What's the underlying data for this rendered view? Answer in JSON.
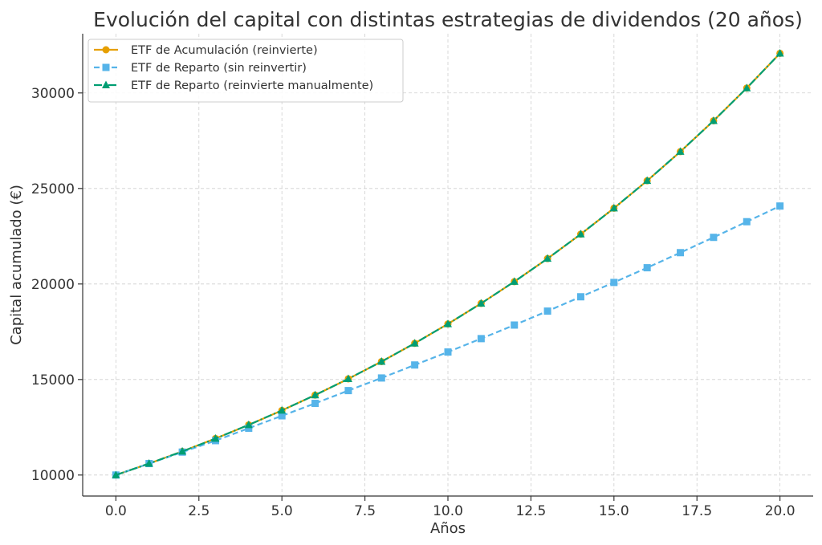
{
  "chart_data": {
    "type": "line",
    "title": "Evolución del capital con distintas estrategias de dividendos (20 años)",
    "xlabel": "Años",
    "ylabel": "Capital acumulado (€)",
    "xlim": [
      -1.0,
      21.0
    ],
    "ylim": [
      8900,
      33100
    ],
    "xticks": [
      0.0,
      2.5,
      5.0,
      7.5,
      10.0,
      12.5,
      15.0,
      17.5,
      20.0
    ],
    "xtick_labels": [
      "0.0",
      "2.5",
      "5.0",
      "7.5",
      "10.0",
      "12.5",
      "15.0",
      "17.5",
      "20.0"
    ],
    "yticks": [
      10000,
      15000,
      20000,
      25000,
      30000
    ],
    "ytick_labels": [
      "10000",
      "15000",
      "20000",
      "25000",
      "30000"
    ],
    "grid": true,
    "legend_position": "top-left",
    "x": [
      0,
      1,
      2,
      3,
      4,
      5,
      6,
      7,
      8,
      9,
      10,
      11,
      12,
      13,
      14,
      15,
      16,
      17,
      18,
      19,
      20
    ],
    "series": [
      {
        "name": "ETF de Acumulación (reinvierte)",
        "color": "#E69F00",
        "line_style": "solid",
        "marker": "circle",
        "values": [
          10000,
          10600,
          11236,
          11910,
          12625,
          13382,
          14185,
          15036,
          15938,
          16895,
          17908,
          18983,
          20122,
          21329,
          22609,
          23966,
          25404,
          26928,
          28543,
          30256,
          32071
        ]
      },
      {
        "name": "ETF de Reparto (sin reinvertir)",
        "color": "#56B4E9",
        "line_style": "dashed",
        "marker": "square",
        "values": [
          10000,
          10600,
          11200,
          11800,
          12450,
          13100,
          13750,
          14420,
          15080,
          15760,
          16440,
          17140,
          17850,
          18580,
          19330,
          20080,
          20850,
          21640,
          22440,
          23260,
          24080
        ]
      },
      {
        "name": "ETF de Reparto (reinvierte manualmente)",
        "color": "#009E73",
        "line_style": "dashdot",
        "marker": "triangle",
        "values": [
          10000,
          10600,
          11236,
          11910,
          12625,
          13382,
          14185,
          15036,
          15938,
          16895,
          17908,
          18983,
          20122,
          21329,
          22609,
          23966,
          25404,
          26928,
          28543,
          30256,
          32071
        ]
      }
    ]
  }
}
